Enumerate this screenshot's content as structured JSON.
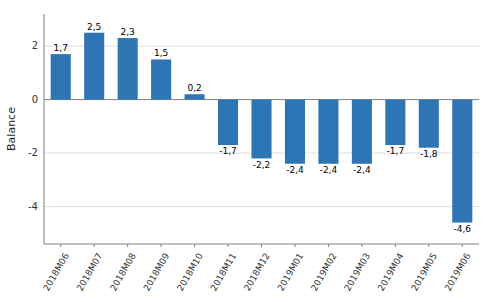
{
  "chart_data": {
    "type": "bar",
    "ylabel": "Balance",
    "categories": [
      "2018M06",
      "2018M07",
      "2018M08",
      "2018M09",
      "2018M10",
      "2018M11",
      "2018M12",
      "2019M01",
      "2019M02",
      "2019M03",
      "2019M04",
      "2019M05",
      "2019M06"
    ],
    "values": [
      1.7,
      2.5,
      2.3,
      1.5,
      0.2,
      -1.7,
      -2.2,
      -2.4,
      -2.4,
      -2.4,
      -1.7,
      -1.8,
      -4.6
    ],
    "value_labels": [
      "1,7",
      "2,5",
      "2,3",
      "1,5",
      "0,2",
      "-1,7",
      "-2,2",
      "-2,4",
      "-2,4",
      "-2,4",
      "-1,7",
      "-1,8",
      "-4,6"
    ],
    "color": "#2e75b6",
    "ylim": [
      -5.4,
      3.2
    ],
    "yticks": [
      -4,
      -2,
      0,
      2
    ],
    "grid": true,
    "data_labels": true
  }
}
